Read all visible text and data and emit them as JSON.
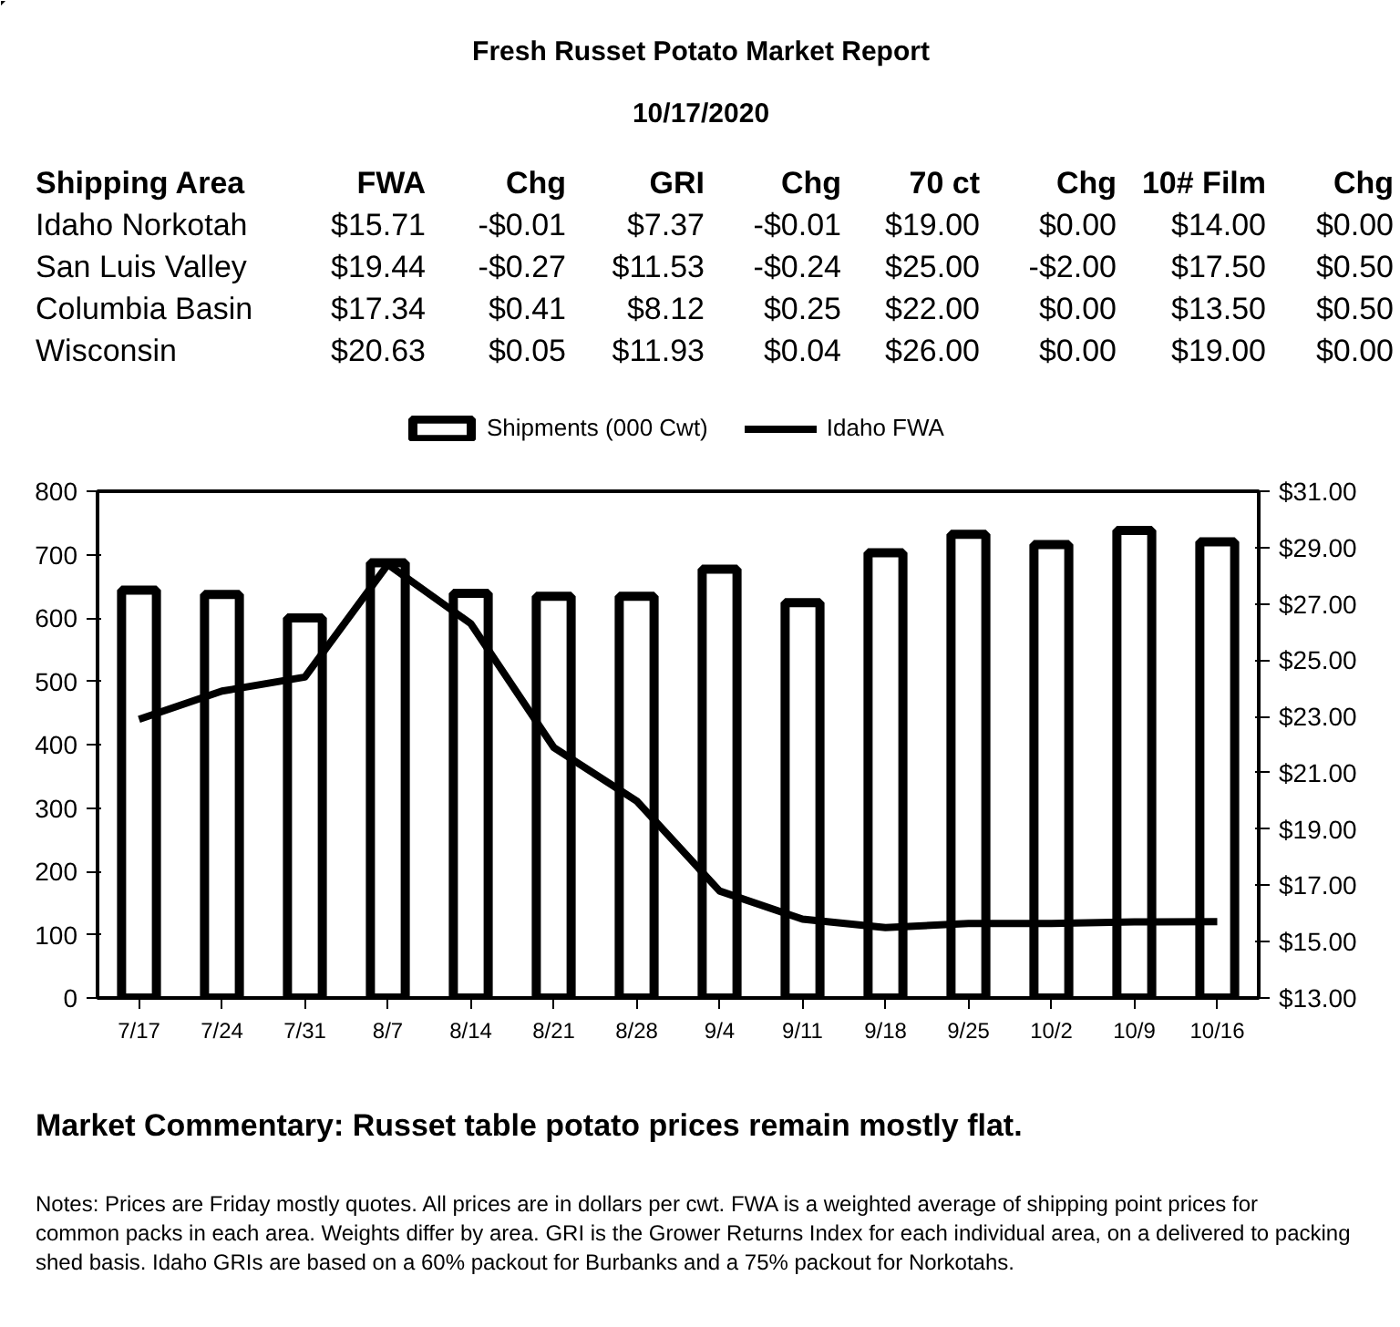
{
  "chart_data": [
    {
      "type": "other",
      "title": "Fresh Russet Potato Market Report",
      "subtitle": "10/17/2020",
      "categories": [
        "Shipping Area",
        "FWA",
        "Chg",
        "GRI",
        "Chg",
        "70 ct",
        "Chg",
        "10# Film",
        "Chg"
      ],
      "y_categories": [
        "Idaho Norkotah",
        "San Luis Valley",
        "Columbia Basin",
        "Wisconsin"
      ],
      "cell_labels": [
        [
          "$15.71",
          "-$0.01",
          "$7.37",
          "-$0.01",
          "$19.00",
          "$0.00",
          "$14.00",
          "$0.00"
        ],
        [
          "$19.44",
          "-$0.27",
          "$11.53",
          "-$0.24",
          "$25.00",
          "-$2.00",
          "$17.50",
          "$0.50"
        ],
        [
          "$17.34",
          "$0.41",
          "$8.12",
          "$0.25",
          "$22.00",
          "$0.00",
          "$13.50",
          "$0.50"
        ],
        [
          "$20.63",
          "$0.05",
          "$11.93",
          "$0.04",
          "$26.00",
          "$0.00",
          "$19.00",
          "$0.00"
        ]
      ]
    },
    {
      "type": "bar",
      "categories": [
        "7/17",
        "7/24",
        "7/31",
        "8/7",
        "8/14",
        "8/21",
        "8/28",
        "9/4",
        "9/11",
        "9/18",
        "9/25",
        "10/2",
        "10/9",
        "10/16"
      ],
      "series": [
        {
          "name": "Shipments (000 Cwt)",
          "type": "bar",
          "color": "#000000",
          "values": [
            644,
            637,
            600,
            687,
            639,
            634,
            634,
            677,
            624,
            703,
            732,
            716,
            738,
            720
          ]
        },
        {
          "name": "Idaho FWA",
          "type": "line",
          "axis": "y2",
          "color": "#000000",
          "values": [
            22.9,
            23.9,
            24.4,
            28.4,
            26.3,
            21.9,
            20.0,
            16.8,
            15.8,
            15.5,
            15.65,
            15.65,
            15.7,
            15.71
          ]
        }
      ],
      "ylim": [
        0,
        800
      ],
      "yticks": [
        0,
        100,
        200,
        300,
        400,
        500,
        600,
        700,
        800
      ],
      "y2lim": [
        13,
        31
      ],
      "y2ticks": [
        {
          "value": 13,
          "label": "$13.00"
        },
        {
          "value": 15,
          "label": "$15.00"
        },
        {
          "value": 17,
          "label": "$17.00"
        },
        {
          "value": 19,
          "label": "$19.00"
        },
        {
          "value": 21,
          "label": "$21.00"
        },
        {
          "value": 23,
          "label": "$23.00"
        },
        {
          "value": 25,
          "label": "$25.00"
        },
        {
          "value": 27,
          "label": "$27.00"
        },
        {
          "value": 29,
          "label": "$29.00"
        },
        {
          "value": 31,
          "label": "$31.00"
        }
      ],
      "grid": false,
      "legend": "top",
      "marker": "none",
      "line_style": "solid",
      "annotations": [
        "Market Commentary: Russet table potato prices remain mostly flat.",
        "Notes: Prices are Friday mostly quotes. All prices are in dollars per cwt. FWA is a weighted average of shipping point prices for  common packs in each area. Weights differ by area. GRI is the Grower Returns Index for each individual area, on a delivered to packing shed basis. Idaho GRIs are based on a 60% packout for Burbanks and a 75% packout for Norkotahs."
      ]
    }
  ]
}
